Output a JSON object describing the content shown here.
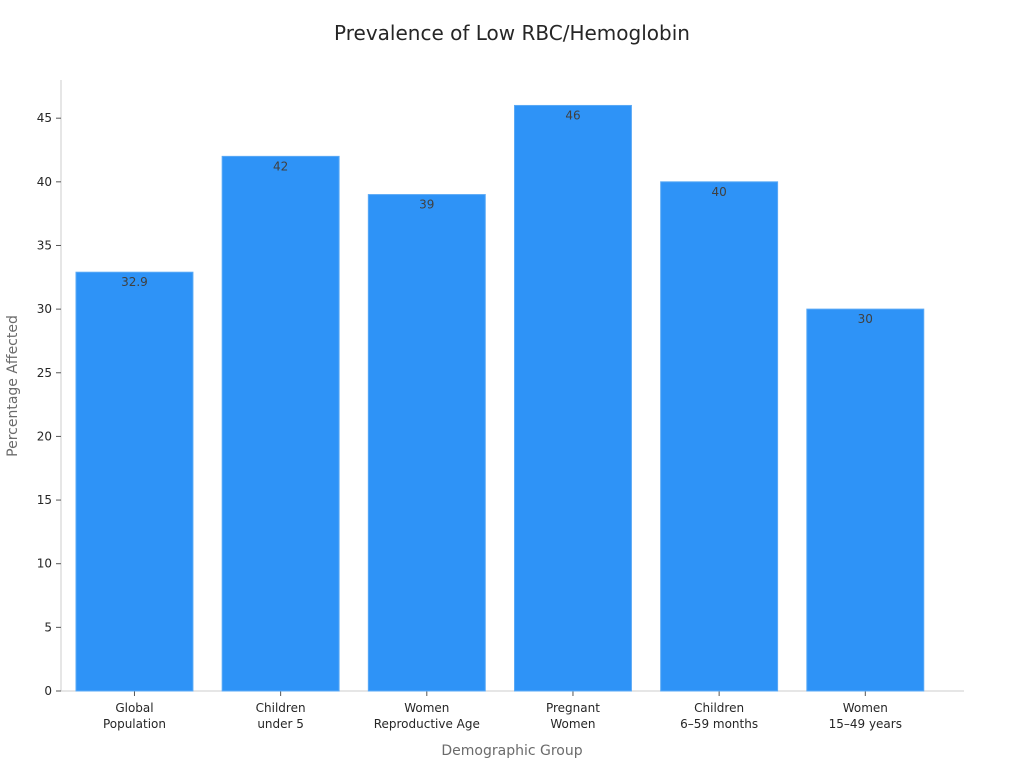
{
  "chart_data": {
    "type": "bar",
    "title": "Prevalence of Low RBC/Hemoglobin",
    "xlabel": "Demographic Group",
    "ylabel": "Percentage Affected",
    "categories": [
      [
        "Global",
        "Population"
      ],
      [
        "Children",
        "under 5"
      ],
      [
        "Women",
        "Reproductive Age"
      ],
      [
        "Pregnant",
        "Women"
      ],
      [
        "Children",
        "6–59 months"
      ],
      [
        "Women",
        "15–49 years"
      ]
    ],
    "values": [
      32.9,
      42,
      39,
      46,
      40,
      30
    ],
    "data_labels": [
      "32.9",
      "42",
      "39",
      "46",
      "40",
      "30"
    ],
    "ylim": [
      0,
      48
    ],
    "yticks": [
      0,
      5,
      10,
      15,
      20,
      25,
      30,
      35,
      40,
      45
    ],
    "grid": false,
    "legend": "none",
    "colors": {
      "bar": "#2e93f7",
      "bar_edge": "#5aa9f5"
    }
  }
}
